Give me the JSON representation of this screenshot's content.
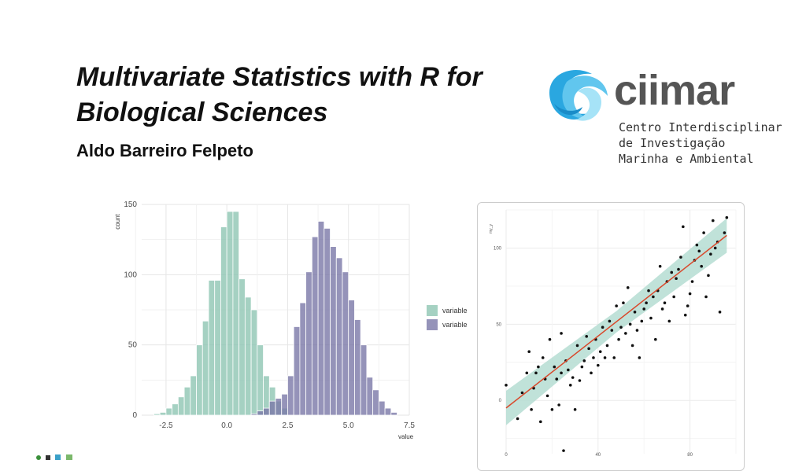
{
  "slide": {
    "title_line1": "Multivariate Statistics with R for",
    "title_line2": "Biological Sciences",
    "author": "Aldo Barreiro Felpeto"
  },
  "logo": {
    "wordmark": "ciimar",
    "line1": "Centro Interdisciplinar",
    "line2": "de Investigação",
    "line3": "Marinha e Ambiental",
    "colors": {
      "primary": "#2aa7e0",
      "secondary": "#a6e3f7",
      "text": "#555555"
    }
  },
  "chart_data": [
    {
      "type": "bar",
      "subtype": "overlapping-histogram",
      "xlabel": "value",
      "ylabel": "count",
      "xlim": [
        -3.5,
        7.5
      ],
      "ylim": [
        0,
        150
      ],
      "x_ticks": [
        "-2.5",
        "0.0",
        "2.5",
        "5.0",
        "7.5"
      ],
      "y_ticks": [
        "0",
        "50",
        "100",
        "150"
      ],
      "bin_width": 0.25,
      "legend": {
        "position": "right",
        "entries": [
          "variable",
          "variable"
        ]
      },
      "series": [
        {
          "name": "variable",
          "color": "#8fc5b3",
          "bins": [
            [
              -3.0,
              1
            ],
            [
              -2.75,
              2
            ],
            [
              -2.5,
              5
            ],
            [
              -2.25,
              8
            ],
            [
              -2.0,
              13
            ],
            [
              -1.75,
              20
            ],
            [
              -1.5,
              28
            ],
            [
              -1.25,
              50
            ],
            [
              -1.0,
              67
            ],
            [
              -0.75,
              96
            ],
            [
              -0.5,
              96
            ],
            [
              -0.25,
              134
            ],
            [
              0.0,
              145
            ],
            [
              0.25,
              145
            ],
            [
              0.5,
              97
            ],
            [
              0.75,
              84
            ],
            [
              1.0,
              75
            ],
            [
              1.25,
              50
            ],
            [
              1.5,
              28
            ],
            [
              1.75,
              20
            ],
            [
              2.0,
              10
            ],
            [
              2.25,
              5
            ]
          ]
        },
        {
          "name": "variable",
          "color": "#7a78a8",
          "bins": [
            [
              1.0,
              1
            ],
            [
              1.25,
              3
            ],
            [
              1.5,
              5
            ],
            [
              1.75,
              10
            ],
            [
              2.0,
              12
            ],
            [
              2.25,
              15
            ],
            [
              2.5,
              28
            ],
            [
              2.75,
              63
            ],
            [
              3.0,
              80
            ],
            [
              3.25,
              102
            ],
            [
              3.5,
              127
            ],
            [
              3.75,
              138
            ],
            [
              4.0,
              133
            ],
            [
              4.25,
              120
            ],
            [
              4.5,
              112
            ],
            [
              4.75,
              102
            ],
            [
              5.0,
              82
            ],
            [
              5.25,
              68
            ],
            [
              5.5,
              50
            ],
            [
              5.75,
              27
            ],
            [
              6.0,
              18
            ],
            [
              6.25,
              10
            ],
            [
              6.5,
              5
            ],
            [
              6.75,
              2
            ]
          ]
        }
      ]
    },
    {
      "type": "scatter",
      "ylabel": "my_y",
      "xlim": [
        0,
        100
      ],
      "ylim": [
        -35,
        125
      ],
      "y_ticks": [
        "0",
        "50",
        "100"
      ],
      "x_ticks": [
        "0",
        "40",
        "80"
      ],
      "regression": {
        "intercept": -5,
        "slope": 1.18,
        "line_color": "#d9482b",
        "band_color": "#b5ddd2"
      },
      "points": [
        [
          0,
          10
        ],
        [
          5,
          -12
        ],
        [
          7,
          5
        ],
        [
          9,
          18
        ],
        [
          10,
          32
        ],
        [
          11,
          -6
        ],
        [
          12,
          8
        ],
        [
          13,
          18
        ],
        [
          14,
          22
        ],
        [
          15,
          -14
        ],
        [
          16,
          28
        ],
        [
          17,
          14
        ],
        [
          18,
          3
        ],
        [
          19,
          40
        ],
        [
          20,
          -6
        ],
        [
          21,
          22
        ],
        [
          22,
          14
        ],
        [
          23,
          -3
        ],
        [
          24,
          18
        ],
        [
          24,
          44
        ],
        [
          25,
          -33
        ],
        [
          26,
          26
        ],
        [
          27,
          20
        ],
        [
          28,
          10
        ],
        [
          29,
          15
        ],
        [
          30,
          -6
        ],
        [
          31,
          36
        ],
        [
          32,
          13
        ],
        [
          33,
          22
        ],
        [
          34,
          26
        ],
        [
          35,
          42
        ],
        [
          36,
          34
        ],
        [
          37,
          18
        ],
        [
          38,
          28
        ],
        [
          39,
          40
        ],
        [
          40,
          23
        ],
        [
          41,
          32
        ],
        [
          42,
          48
        ],
        [
          43,
          28
        ],
        [
          44,
          36
        ],
        [
          45,
          52
        ],
        [
          46,
          46
        ],
        [
          47,
          28
        ],
        [
          48,
          62
        ],
        [
          49,
          40
        ],
        [
          50,
          48
        ],
        [
          51,
          64
        ],
        [
          52,
          44
        ],
        [
          53,
          74
        ],
        [
          54,
          50
        ],
        [
          55,
          36
        ],
        [
          56,
          58
        ],
        [
          57,
          46
        ],
        [
          58,
          28
        ],
        [
          59,
          52
        ],
        [
          60,
          60
        ],
        [
          61,
          64
        ],
        [
          62,
          72
        ],
        [
          63,
          54
        ],
        [
          64,
          68
        ],
        [
          65,
          40
        ],
        [
          66,
          72
        ],
        [
          67,
          88
        ],
        [
          68,
          60
        ],
        [
          69,
          64
        ],
        [
          70,
          78
        ],
        [
          71,
          52
        ],
        [
          72,
          84
        ],
        [
          73,
          68
        ],
        [
          74,
          80
        ],
        [
          75,
          86
        ],
        [
          76,
          94
        ],
        [
          77,
          114
        ],
        [
          78,
          56
        ],
        [
          79,
          62
        ],
        [
          80,
          70
        ],
        [
          81,
          78
        ],
        [
          82,
          92
        ],
        [
          83,
          102
        ],
        [
          84,
          98
        ],
        [
          85,
          88
        ],
        [
          86,
          110
        ],
        [
          87,
          68
        ],
        [
          88,
          82
        ],
        [
          89,
          96
        ],
        [
          90,
          118
        ],
        [
          91,
          100
        ],
        [
          92,
          104
        ],
        [
          93,
          58
        ],
        [
          95,
          110
        ],
        [
          96,
          120
        ]
      ]
    }
  ]
}
